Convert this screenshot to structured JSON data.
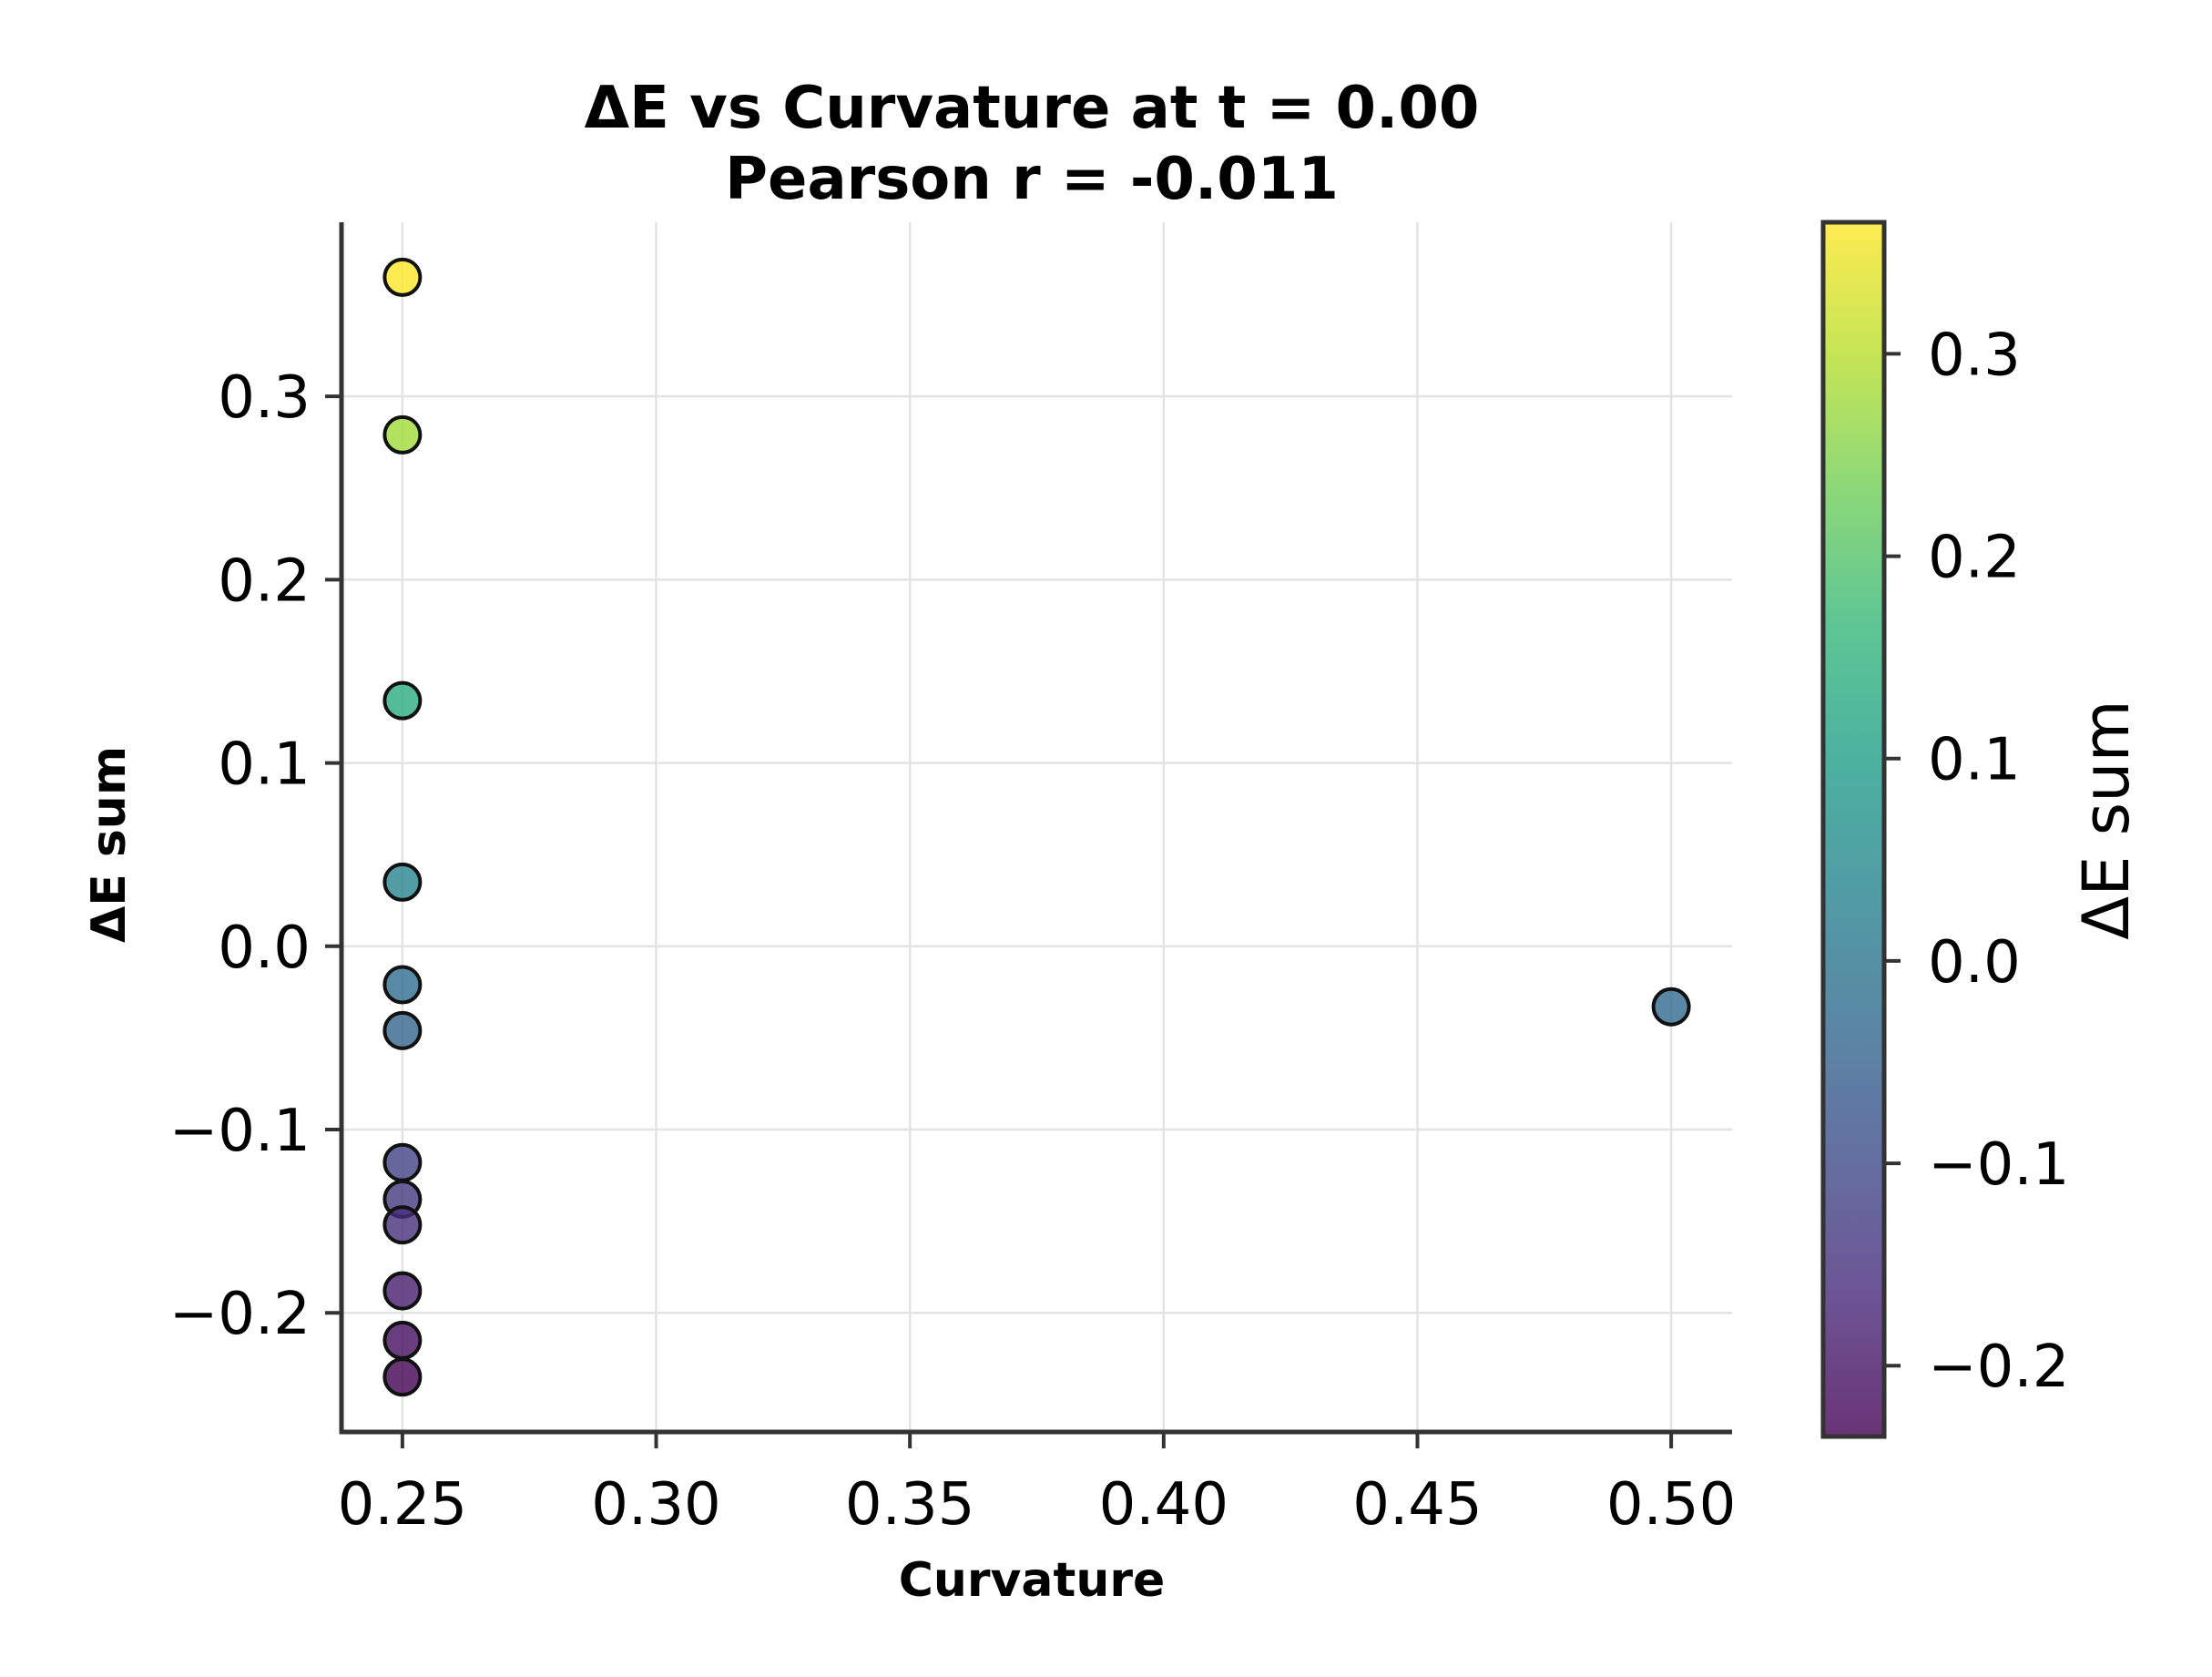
{
  "chart_data": {
    "type": "scatter",
    "title": "ΔE vs Curvature at t = 0.00",
    "subtitle": "Pearson r = -0.011",
    "xlabel": "Curvature",
    "ylabel": "ΔE sum",
    "xlim": [
      0.238,
      0.512
    ],
    "ylim": [
      -0.265,
      0.395
    ],
    "xticks": [
      0.25,
      0.3,
      0.35,
      0.4,
      0.45,
      0.5
    ],
    "xtick_labels": [
      "0.25",
      "0.30",
      "0.35",
      "0.40",
      "0.45",
      "0.50"
    ],
    "yticks": [
      -0.2,
      -0.1,
      0.0,
      0.1,
      0.2,
      0.3
    ],
    "ytick_labels": [
      "−0.2",
      "−0.1",
      "0.0",
      "0.1",
      "0.2",
      "0.3"
    ],
    "grid": true,
    "points": [
      {
        "x": 0.25,
        "y": 0.365
      },
      {
        "x": 0.25,
        "y": 0.279
      },
      {
        "x": 0.25,
        "y": 0.134
      },
      {
        "x": 0.25,
        "y": 0.035
      },
      {
        "x": 0.25,
        "y": -0.021
      },
      {
        "x": 0.25,
        "y": -0.046
      },
      {
        "x": 0.25,
        "y": -0.118
      },
      {
        "x": 0.25,
        "y": -0.138
      },
      {
        "x": 0.25,
        "y": -0.152
      },
      {
        "x": 0.25,
        "y": -0.188
      },
      {
        "x": 0.25,
        "y": -0.215
      },
      {
        "x": 0.25,
        "y": -0.235
      },
      {
        "x": 0.5,
        "y": -0.033
      }
    ],
    "colormap": "viridis",
    "colorbar": {
      "label": "ΔE sum",
      "range": [
        -0.235,
        0.365
      ],
      "ticks": [
        -0.2,
        -0.1,
        0.0,
        0.1,
        0.2,
        0.3
      ],
      "tick_labels": [
        "−0.2",
        "−0.1",
        "0.0",
        "0.1",
        "0.2",
        "0.3"
      ]
    },
    "marker_alpha": 0.8,
    "colors": {
      "grid": "#e3e3e3",
      "axis": "#333333",
      "marker_edge": "#111111",
      "viridis_stops": [
        "#440154",
        "#482878",
        "#3e4989",
        "#31688e",
        "#26828e",
        "#1f9e89",
        "#35b779",
        "#6ece58",
        "#b5de2b",
        "#fde725"
      ]
    }
  }
}
